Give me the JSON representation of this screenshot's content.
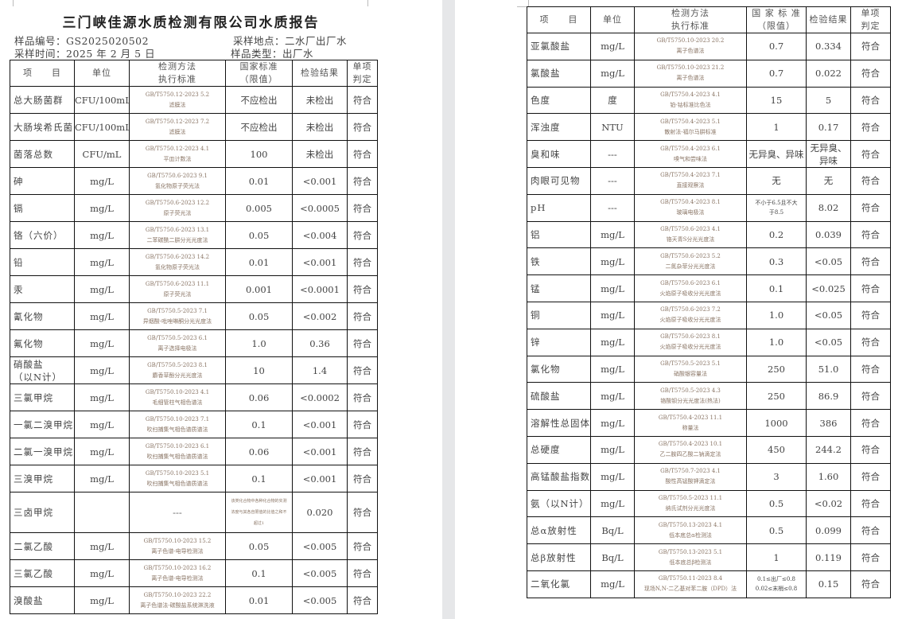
{
  "report": {
    "title": "三门峡佳源水质检测有限公司水质报告",
    "sample_no": "样品编号：GS2025020502",
    "sample_time": "采样时间：2025 年 2 月 5 日",
    "sample_site": "采样地点：二水厂出厂水",
    "sample_type": "样品类型：出厂水"
  },
  "headers": [
    "项　　目",
    "单位",
    "检测方法\n执行标准",
    "国家标准\n（限值）",
    "检验结果",
    "单项\n判定"
  ],
  "headers_right": [
    "项　　目",
    "单位",
    "检测方法\n执行标准",
    "国 家 标 准\n（限值）",
    "检验结果",
    "单项\n判定"
  ],
  "left_rows": [
    {
      "item": "总大肠菌群",
      "unit": "CFU/100mL",
      "std": "GB/T5750.12-2023 5.2",
      "method": "滤膜法",
      "limit": "不应检出",
      "result": "未检出",
      "judge": "符合"
    },
    {
      "item": "大肠埃希氏菌",
      "unit": "CFU/100mL",
      "std": "GB/T5750.12-2023 7.2",
      "method": "滤膜法",
      "limit": "不应检出",
      "result": "未检出",
      "judge": "符合"
    },
    {
      "item": "菌落总数",
      "unit": "CFU/mL",
      "std": "GB/T5750.12-2023 4.1",
      "method": "平皿计数法",
      "limit": "100",
      "result": "未检出",
      "judge": "符合"
    },
    {
      "item": "砷",
      "unit": "mg/L",
      "std": "GB/T5750.6-2023 9.1",
      "method": "氢化物原子荧光法",
      "limit": "0.01",
      "result": "<0.001",
      "judge": "符合"
    },
    {
      "item": "镉",
      "unit": "mg/L",
      "std": "GB/T5750.6-2023 12.2",
      "method": "原子荧光法",
      "limit": "0.005",
      "result": "<0.0005",
      "judge": "符合"
    },
    {
      "item": "铬（六价）",
      "unit": "mg/L",
      "std": "GB/T5750.6-2023 13.1",
      "method": "二苯碳酰二肼分光光度法",
      "limit": "0.05",
      "result": "<0.004",
      "judge": "符合"
    },
    {
      "item": "铅",
      "unit": "mg/L",
      "std": "GB/T5750.6-2023 14.2",
      "method": "氢化物原子荧光法",
      "limit": "0.01",
      "result": "<0.001",
      "judge": "符合"
    },
    {
      "item": "汞",
      "unit": "mg/L",
      "std": "GB/T5750.6-2023 11.1",
      "method": "原子荧光法",
      "limit": "0.001",
      "result": "<0.0001",
      "judge": "符合"
    },
    {
      "item": "氰化物",
      "unit": "mg/L",
      "std": "GB/T5750.5-2023 7.1",
      "method": "异烟酸-吡唑啉酮分光光度法",
      "limit": "0.05",
      "result": "<0.002",
      "judge": "符合"
    },
    {
      "item": "氟化物",
      "unit": "mg/L",
      "std": "GB/T5750.5-2023 6.1",
      "method": "离子选择电极法",
      "limit": "1.0",
      "result": "0.36",
      "judge": "符合"
    },
    {
      "item": "硝酸盐\n（以N计）",
      "unit": "mg/L",
      "std": "GB/T5750.5-2023 8.1",
      "method": "麝香草酚分光光度法",
      "limit": "10",
      "result": "1.4",
      "judge": "符合"
    },
    {
      "item": "三氯甲烷",
      "unit": "mg/L",
      "std": "GB/T5750.10-2023 4.1",
      "method": "毛细管柱气相色谱法",
      "limit": "0.06",
      "result": "<0.0002",
      "judge": "符合"
    },
    {
      "item": "一氯二溴甲烷",
      "unit": "mg/L",
      "std": "GB/T5750.10-2023 7.1",
      "method": "吹扫捕集气相色谱质谱法",
      "limit": "0.1",
      "result": "<0.001",
      "judge": "符合"
    },
    {
      "item": "二氯一溴甲烷",
      "unit": "mg/L",
      "std": "GB/T5750.10-2023 6.1",
      "method": "吹扫捕集气相色谱质谱法",
      "limit": "0.06",
      "result": "<0.001",
      "judge": "符合"
    },
    {
      "item": "三溴甲烷",
      "unit": "mg/L",
      "std": "GB/T5750.10-2023 5.1",
      "method": "吹扫捕集气相色谱质谱法",
      "limit": "0.1",
      "result": "<0.001",
      "judge": "符合"
    },
    {
      "item": "三卤甲烷",
      "unit": "",
      "std": "---",
      "method": "",
      "limit": "该类化合物中各种化合物的实测浓度与其各自限值的比值之和不超过1",
      "result": "0.020",
      "judge": "符合",
      "tall": true
    },
    {
      "item": "二氯乙酸",
      "unit": "mg/L",
      "std": "GB/T5750.10-2023 15.2",
      "method": "离子色谱-电导检测法",
      "limit": "0.05",
      "result": "<0.005",
      "judge": "符合"
    },
    {
      "item": "三氯乙酸",
      "unit": "mg/L",
      "std": "GB/T5750.10-2023 16.2",
      "method": "离子色谱-电导检测法",
      "limit": "0.1",
      "result": "<0.005",
      "judge": "符合"
    },
    {
      "item": "溴酸盐",
      "unit": "mg/L",
      "std": "GB/T5750.10-2023 22.2",
      "method": "离子色谱法-碳酸盐系统淋洗液",
      "limit": "0.01",
      "result": "<0.005",
      "judge": "符合"
    }
  ],
  "right_rows": [
    {
      "item": "亚氯酸盐",
      "unit": "mg/L",
      "std": "GB/T5750.10-2023 20.2",
      "method": "离子色谱法",
      "limit": "0.7",
      "result": "0.334",
      "judge": "符合"
    },
    {
      "item": "氯酸盐",
      "unit": "mg/L",
      "std": "GB/T5750.10-2023 21.2",
      "method": "离子色谱法",
      "limit": "0.7",
      "result": "0.022",
      "judge": "符合"
    },
    {
      "item": "色度",
      "unit": "度",
      "std": "GB/T5750.4-2023 4.1",
      "method": "铂-钴标准比色法",
      "limit": "15",
      "result": "5",
      "judge": "符合"
    },
    {
      "item": "浑浊度",
      "unit": "NTU",
      "std": "GB/T5750.4-2023 5.1",
      "method": "散射法-福尔马肼标准",
      "limit": "1",
      "result": "0.17",
      "judge": "符合"
    },
    {
      "item": "臭和味",
      "unit": "---",
      "std": "GB/T5750.4-2023 6.1",
      "method": "嗅气和尝味法",
      "limit": "无异臭、异味",
      "result": "无异臭、\n异味",
      "judge": "符合"
    },
    {
      "item": "肉眼可见物",
      "unit": "---",
      "std": "GB/T5750.4-2023 7.1",
      "method": "直接观察法",
      "limit": "无",
      "result": "无",
      "judge": "符合"
    },
    {
      "item": "pH",
      "unit": "---",
      "std": "GB/T5750.4-2023 8.1",
      "method": "玻璃电极法",
      "limit": "不小于6.5且不大\n于8.5",
      "result": "8.02",
      "judge": "符合",
      "smalllimit": true
    },
    {
      "item": "铝",
      "unit": "mg/L",
      "std": "GB/T5750.6-2023 4.1",
      "method": "铬天青S分光光度法",
      "limit": "0.2",
      "result": "0.039",
      "judge": "符合"
    },
    {
      "item": "铁",
      "unit": "mg/L",
      "std": "GB/T5750.6-2023 5.2",
      "method": "二氮杂菲分光光度法",
      "limit": "0.3",
      "result": "<0.05",
      "judge": "符合"
    },
    {
      "item": "锰",
      "unit": "mg/L",
      "std": "GB/T5750.6-2023 6.1",
      "method": "火焰原子吸收分光光度法",
      "limit": "0.1",
      "result": "<0.025",
      "judge": "符合"
    },
    {
      "item": "铜",
      "unit": "mg/L",
      "std": "GB/T5750.6-2023 7.2",
      "method": "火焰原子吸收分光光度法",
      "limit": "1.0",
      "result": "<0.05",
      "judge": "符合"
    },
    {
      "item": "锌",
      "unit": "mg/L",
      "std": "GB/T5750.6-2023 8.1",
      "method": "火焰原子吸收分光光度法",
      "limit": "1.0",
      "result": "<0.05",
      "judge": "符合"
    },
    {
      "item": "氯化物",
      "unit": "mg/L",
      "std": "GB/T5750.5-2023 5.1",
      "method": "硝酸银容量法",
      "limit": "250",
      "result": "51.0",
      "judge": "符合"
    },
    {
      "item": "硫酸盐",
      "unit": "mg/L",
      "std": "GB/T5750.5-2023 4.3",
      "method": "铬酸钡分光光度法(热法)",
      "limit": "250",
      "result": "86.9",
      "judge": "符合"
    },
    {
      "item": "溶解性总固体",
      "unit": "mg/L",
      "std": "GB/T5750.4-2023 11.1",
      "method": "称量法",
      "limit": "1000",
      "result": "386",
      "judge": "符合"
    },
    {
      "item": "总硬度",
      "unit": "mg/L",
      "std": "GB/T5750.4-2023 10.1",
      "method": "乙二胺四乙酸二钠滴定法",
      "limit": "450",
      "result": "244.2",
      "judge": "符合"
    },
    {
      "item": "高锰酸盐指数",
      "unit": "mg/L",
      "std": "GB/T5750.7-2023 4.1",
      "method": "酸性高锰酸钾滴定法",
      "limit": "3",
      "result": "1.60",
      "judge": "符合"
    },
    {
      "item": "氨（以N计）",
      "unit": "mg/L",
      "std": "GB/T5750.5-2023 11.1",
      "method": "纳氏试剂分光光度法",
      "limit": "0.5",
      "result": "<0.02",
      "judge": "符合"
    },
    {
      "item": "总α放射性",
      "unit": "Bq/L",
      "std": "GB/T5750.13-2023 4.1",
      "method": "低本底总α检测法",
      "limit": "0.5",
      "result": "0.099",
      "judge": "符合"
    },
    {
      "item": "总β放射性",
      "unit": "Bq/L",
      "std": "GB/T5750.13-2023 5.1",
      "method": "低本底总β检测法",
      "limit": "1",
      "result": "0.119",
      "judge": "符合"
    },
    {
      "item": "二氧化氯",
      "unit": "mg/L",
      "std": "GB/T5750.11-2023 8.4",
      "method": "现场N,N-二乙基对苯二胺（DPD）法",
      "limit": "0.1≤出厂≤0.8\n0.02≤末梢≤0.8",
      "result": "0.15",
      "judge": "符合",
      "smalllimit": true
    }
  ]
}
